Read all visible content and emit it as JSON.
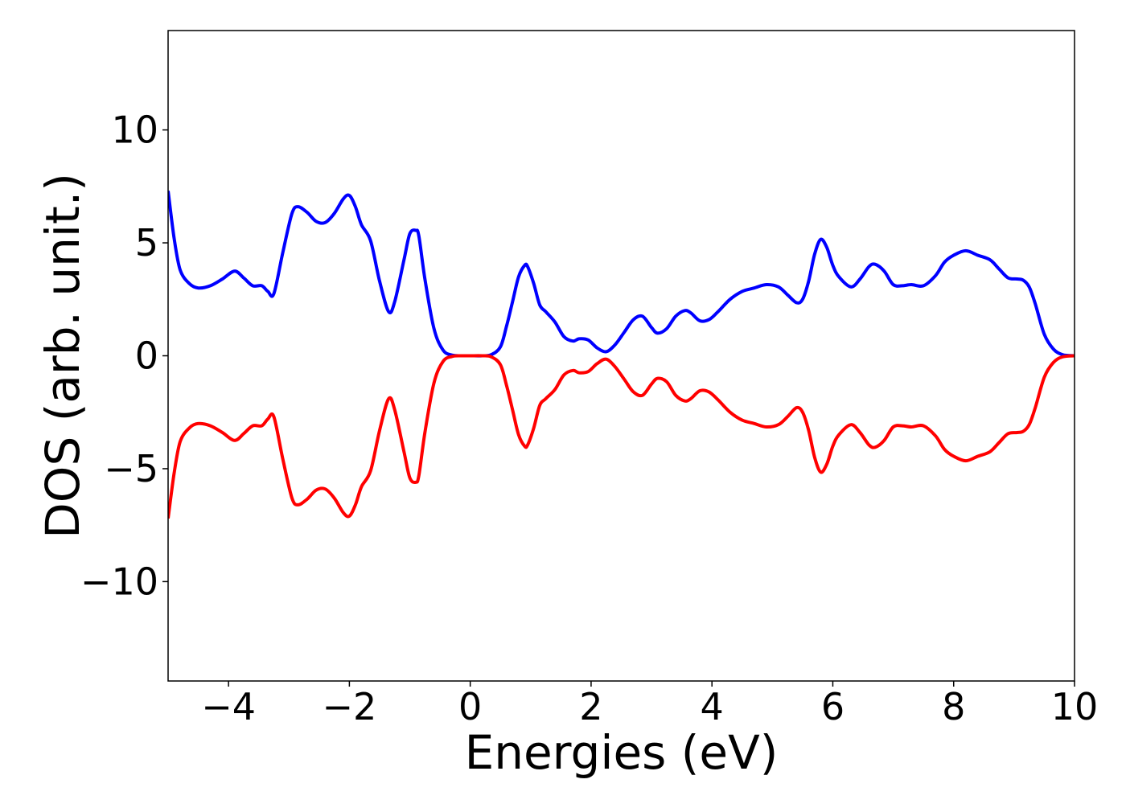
{
  "chart_data": {
    "type": "line",
    "title": "",
    "xlabel": "Energies (eV)",
    "ylabel": "DOS (arb. unit.)",
    "xlim": [
      -5,
      10
    ],
    "ylim": [
      -14.4,
      14.4
    ],
    "xticks": [
      -4,
      -2,
      0,
      2,
      4,
      6,
      8,
      10
    ],
    "xtick_labels": [
      "−4",
      "−2",
      "0",
      "2",
      "4",
      "6",
      "8",
      "10"
    ],
    "yticks": [
      -10,
      -5,
      0,
      5,
      10
    ],
    "ytick_labels": [
      "−10",
      "−5",
      "0",
      "5",
      "10"
    ],
    "grid": false,
    "legend": "none",
    "series": [
      {
        "color": "#0000ff",
        "x": [
          -5.0,
          -4.9,
          -4.8,
          -4.65,
          -4.5,
          -4.3,
          -4.1,
          -3.9,
          -3.75,
          -3.6,
          -3.45,
          -3.35,
          -3.25,
          -3.1,
          -2.95,
          -2.85,
          -2.7,
          -2.55,
          -2.4,
          -2.25,
          -2.1,
          -2.0,
          -1.9,
          -1.8,
          -1.65,
          -1.5,
          -1.35,
          -1.25,
          -1.1,
          -1.0,
          -0.9,
          -0.85,
          -0.75,
          -0.6,
          -0.45,
          -0.3,
          -0.15,
          0.0,
          0.2,
          0.35,
          0.5,
          0.6,
          0.7,
          0.8,
          0.9,
          0.95,
          1.05,
          1.15,
          1.25,
          1.4,
          1.55,
          1.7,
          1.8,
          1.95,
          2.1,
          2.25,
          2.4,
          2.55,
          2.7,
          2.85,
          3.0,
          3.1,
          3.25,
          3.4,
          3.55,
          3.65,
          3.8,
          3.95,
          4.1,
          4.3,
          4.5,
          4.7,
          4.9,
          5.1,
          5.25,
          5.4,
          5.5,
          5.6,
          5.7,
          5.8,
          5.9,
          6.0,
          6.1,
          6.3,
          6.45,
          6.6,
          6.7,
          6.85,
          7.0,
          7.15,
          7.3,
          7.5,
          7.7,
          7.85,
          8.0,
          8.2,
          8.4,
          8.6,
          8.75,
          8.9,
          9.05,
          9.15,
          9.25,
          9.35,
          9.5,
          9.65,
          9.8,
          10.0
        ],
        "values": [
          7.3,
          5.2,
          3.8,
          3.2,
          3.0,
          3.1,
          3.4,
          3.75,
          3.45,
          3.1,
          3.1,
          2.85,
          2.75,
          4.6,
          6.3,
          6.6,
          6.35,
          5.95,
          5.9,
          6.3,
          6.95,
          7.1,
          6.6,
          5.8,
          5.1,
          3.3,
          1.95,
          2.4,
          4.2,
          5.4,
          5.55,
          5.3,
          3.4,
          1.2,
          0.25,
          0.03,
          0.0,
          0.0,
          0.0,
          0.05,
          0.4,
          1.3,
          2.4,
          3.5,
          4.0,
          3.95,
          3.2,
          2.25,
          1.95,
          1.5,
          0.85,
          0.65,
          0.75,
          0.7,
          0.35,
          0.18,
          0.5,
          1.05,
          1.6,
          1.75,
          1.25,
          1.0,
          1.2,
          1.75,
          2.0,
          1.9,
          1.55,
          1.6,
          1.95,
          2.5,
          2.85,
          3.0,
          3.15,
          3.05,
          2.7,
          2.35,
          2.5,
          3.3,
          4.5,
          5.15,
          4.8,
          4.0,
          3.5,
          3.05,
          3.4,
          3.95,
          4.05,
          3.75,
          3.15,
          3.1,
          3.15,
          3.1,
          3.55,
          4.15,
          4.45,
          4.65,
          4.45,
          4.25,
          3.85,
          3.45,
          3.4,
          3.35,
          3.05,
          2.3,
          0.95,
          0.3,
          0.05,
          0.0
        ]
      },
      {
        "color": "#ff0000",
        "x": [
          -5.0,
          -4.9,
          -4.8,
          -4.65,
          -4.5,
          -4.3,
          -4.1,
          -3.9,
          -3.75,
          -3.6,
          -3.45,
          -3.35,
          -3.25,
          -3.1,
          -2.95,
          -2.85,
          -2.7,
          -2.55,
          -2.4,
          -2.25,
          -2.1,
          -2.0,
          -1.9,
          -1.8,
          -1.65,
          -1.5,
          -1.35,
          -1.25,
          -1.1,
          -1.0,
          -0.9,
          -0.85,
          -0.75,
          -0.6,
          -0.45,
          -0.3,
          -0.15,
          0.0,
          0.2,
          0.35,
          0.5,
          0.6,
          0.7,
          0.8,
          0.9,
          0.95,
          1.05,
          1.15,
          1.25,
          1.4,
          1.55,
          1.7,
          1.8,
          1.95,
          2.1,
          2.25,
          2.4,
          2.55,
          2.7,
          2.85,
          3.0,
          3.1,
          3.25,
          3.4,
          3.55,
          3.65,
          3.8,
          3.95,
          4.1,
          4.3,
          4.5,
          4.7,
          4.9,
          5.1,
          5.25,
          5.4,
          5.5,
          5.6,
          5.7,
          5.8,
          5.9,
          6.0,
          6.1,
          6.3,
          6.45,
          6.6,
          6.7,
          6.85,
          7.0,
          7.15,
          7.3,
          7.5,
          7.7,
          7.85,
          8.0,
          8.2,
          8.4,
          8.6,
          8.75,
          8.9,
          9.05,
          9.15,
          9.25,
          9.35,
          9.5,
          9.65,
          9.8,
          10.0
        ],
        "values": [
          -7.2,
          -5.2,
          -3.8,
          -3.2,
          -3.0,
          -3.1,
          -3.4,
          -3.75,
          -3.45,
          -3.1,
          -3.1,
          -2.8,
          -2.7,
          -4.6,
          -6.3,
          -6.6,
          -6.35,
          -5.95,
          -5.9,
          -6.3,
          -6.95,
          -7.1,
          -6.6,
          -5.8,
          -5.1,
          -3.3,
          -1.9,
          -2.4,
          -4.2,
          -5.4,
          -5.6,
          -5.3,
          -3.4,
          -1.2,
          -0.25,
          -0.03,
          0.0,
          0.0,
          0.0,
          -0.05,
          -0.4,
          -1.3,
          -2.4,
          -3.5,
          -4.0,
          -3.95,
          -3.2,
          -2.2,
          -1.9,
          -1.5,
          -0.85,
          -0.65,
          -0.75,
          -0.7,
          -0.35,
          -0.15,
          -0.5,
          -1.05,
          -1.6,
          -1.75,
          -1.25,
          -1.0,
          -1.15,
          -1.75,
          -2.0,
          -1.9,
          -1.55,
          -1.6,
          -1.95,
          -2.5,
          -2.85,
          -3.0,
          -3.15,
          -3.05,
          -2.7,
          -2.3,
          -2.5,
          -3.3,
          -4.5,
          -5.15,
          -4.8,
          -4.0,
          -3.5,
          -3.05,
          -3.4,
          -3.95,
          -4.05,
          -3.75,
          -3.15,
          -3.1,
          -3.15,
          -3.1,
          -3.55,
          -4.15,
          -4.45,
          -4.65,
          -4.45,
          -4.25,
          -3.85,
          -3.45,
          -3.4,
          -3.35,
          -3.05,
          -2.3,
          -0.95,
          -0.3,
          -0.05,
          0.0
        ]
      }
    ]
  }
}
